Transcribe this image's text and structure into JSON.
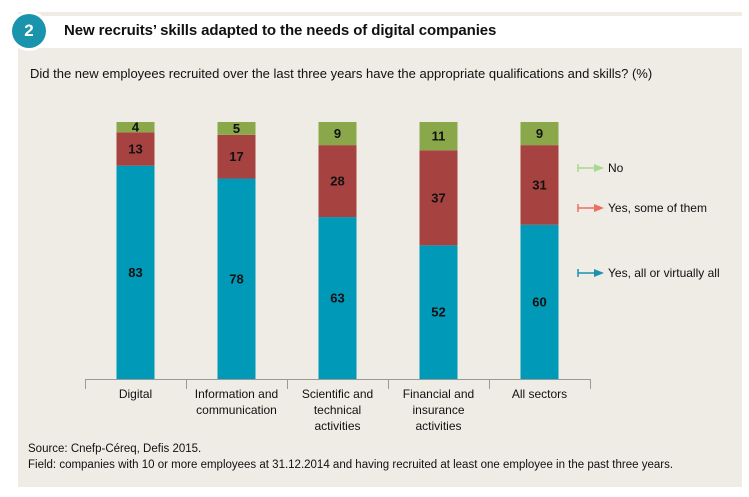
{
  "header": {
    "figure_number": "2",
    "title": "New recruits’ skills adapted to the needs of digital companies"
  },
  "colors": {
    "no": "#8aa84a",
    "yes_some": "#a64341",
    "yes_all": "#0099b8",
    "legend_no": "#a8d88e",
    "legend_yes_some": "#ec6f5e",
    "legend_yes_all": "#1a93ad",
    "badge": "#1a93ad",
    "panel": "#efebe5"
  },
  "chart_data": {
    "type": "bar",
    "stacked": true,
    "title": "Did the new employees recruited over the last three years have the appropriate qualifications and skills? (%)",
    "xlabel": "",
    "ylabel": "",
    "ylim": [
      0,
      100
    ],
    "grid": false,
    "legend_position": "right",
    "categories": [
      [
        "Digital"
      ],
      [
        "Information and",
        "communication"
      ],
      [
        "Scientific and",
        "technical",
        "activities"
      ],
      [
        "Financial and",
        "insurance",
        "activities"
      ],
      [
        "All sectors"
      ]
    ],
    "series": [
      {
        "name": "Yes, all or virtually all",
        "key": "yes_all",
        "values": [
          83,
          78,
          63,
          52,
          60
        ]
      },
      {
        "name": "Yes, some of them",
        "key": "yes_some",
        "values": [
          13,
          17,
          28,
          37,
          31
        ]
      },
      {
        "name": "No",
        "key": "no",
        "values": [
          4,
          5,
          9,
          11,
          9
        ]
      }
    ],
    "legend": [
      "No",
      "Yes, some of them",
      "Yes, all or virtually all"
    ]
  },
  "footer": {
    "source": "Source: Cnefp-Céreq, Defis 2015.",
    "field": "Field: companies with 10 or more employees at 31.12.2014 and having recruited at least one employee in the past three years."
  }
}
